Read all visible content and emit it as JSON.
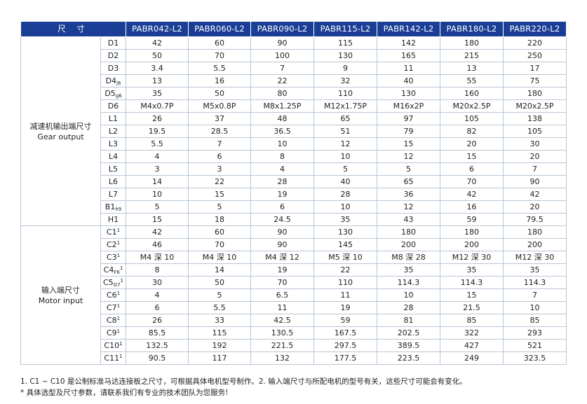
{
  "header": {
    "size_label": "尺 寸",
    "models": [
      "PABR042-L2",
      "PABR060-L2",
      "PABR090-L2",
      "PABR115-L2",
      "PABR142-L2",
      "PABR180-L2",
      "PABR220-L2"
    ]
  },
  "groups": [
    {
      "name_cn": "减速机输出端尺寸",
      "name_en": "Gear output",
      "rows": [
        {
          "code": "D1",
          "sub": "",
          "sup": "",
          "values": [
            "42",
            "60",
            "90",
            "115",
            "142",
            "180",
            "220"
          ]
        },
        {
          "code": "D2",
          "sub": "",
          "sup": "",
          "values": [
            "50",
            "70",
            "100",
            "130",
            "165",
            "215",
            "250"
          ]
        },
        {
          "code": "D3",
          "sub": "",
          "sup": "",
          "values": [
            "3.4",
            "5.5",
            "7",
            "9",
            "11",
            "13",
            "17"
          ]
        },
        {
          "code": "D4",
          "sub": "j6",
          "sup": "",
          "values": [
            "13",
            "16",
            "22",
            "32",
            "40",
            "55",
            "75"
          ]
        },
        {
          "code": "D5",
          "sub": "g6",
          "sup": "",
          "values": [
            "35",
            "50",
            "80",
            "110",
            "130",
            "160",
            "180"
          ]
        },
        {
          "code": "D6",
          "sub": "",
          "sup": "",
          "values": [
            "M4x0.7P",
            "M5x0.8P",
            "M8x1.25P",
            "M12x1.75P",
            "M16x2P",
            "M20x2.5P",
            "M20x2.5P"
          ]
        },
        {
          "code": "L1",
          "sub": "",
          "sup": "",
          "values": [
            "26",
            "37",
            "48",
            "65",
            "97",
            "105",
            "138"
          ]
        },
        {
          "code": "L2",
          "sub": "",
          "sup": "",
          "values": [
            "19.5",
            "28.5",
            "36.5",
            "51",
            "79",
            "82",
            "105"
          ]
        },
        {
          "code": "L3",
          "sub": "",
          "sup": "",
          "values": [
            "5.5",
            "7",
            "10",
            "12",
            "15",
            "20",
            "30"
          ]
        },
        {
          "code": "L4",
          "sub": "",
          "sup": "",
          "values": [
            "4",
            "6",
            "8",
            "10",
            "12",
            "15",
            "20"
          ]
        },
        {
          "code": "L5",
          "sub": "",
          "sup": "",
          "values": [
            "3",
            "3",
            "4",
            "5",
            "5",
            "6",
            "7"
          ]
        },
        {
          "code": "L6",
          "sub": "",
          "sup": "",
          "values": [
            "14",
            "22",
            "28",
            "40",
            "65",
            "70",
            "90"
          ]
        },
        {
          "code": "L7",
          "sub": "",
          "sup": "",
          "values": [
            "10",
            "15",
            "19",
            "28",
            "36",
            "42",
            "42"
          ]
        },
        {
          "code": "B1",
          "sub": "h9",
          "sup": "",
          "values": [
            "5",
            "5",
            "6",
            "10",
            "12",
            "16",
            "20"
          ]
        },
        {
          "code": "H1",
          "sub": "",
          "sup": "",
          "values": [
            "15",
            "18",
            "24.5",
            "35",
            "43",
            "59",
            "79.5"
          ]
        }
      ]
    },
    {
      "name_cn": "输入端尺寸",
      "name_en": "Motor input",
      "rows": [
        {
          "code": "C1",
          "sub": "",
          "sup": "1",
          "values": [
            "42",
            "60",
            "90",
            "130",
            "180",
            "180",
            "180"
          ]
        },
        {
          "code": "C2",
          "sub": "",
          "sup": "1",
          "values": [
            "46",
            "70",
            "90",
            "145",
            "200",
            "200",
            "200"
          ]
        },
        {
          "code": "C3",
          "sub": "",
          "sup": "1",
          "values": [
            "M4 深 10",
            "M4 深 10",
            "M4 深 12",
            "M5 深 10",
            "M8 深 28",
            "M12 深 30",
            "M12 深 30"
          ]
        },
        {
          "code": "C4",
          "sub": "F6",
          "sup": "1",
          "values": [
            "8",
            "14",
            "19",
            "22",
            "35",
            "35",
            "35"
          ]
        },
        {
          "code": "C5",
          "sub": "G7",
          "sup": "1",
          "values": [
            "30",
            "50",
            "70",
            "110",
            "114.3",
            "114.3",
            "114.3"
          ]
        },
        {
          "code": "C6",
          "sub": "",
          "sup": "1",
          "values": [
            "4",
            "5",
            "6.5",
            "11",
            "10",
            "15",
            "7"
          ]
        },
        {
          "code": "C7",
          "sub": "",
          "sup": "1",
          "values": [
            "6",
            "5.5",
            "11",
            "19",
            "28",
            "21.5",
            "10"
          ]
        },
        {
          "code": "C8",
          "sub": "",
          "sup": "1",
          "values": [
            "26",
            "33",
            "42.5",
            "59",
            "81",
            "85",
            "85"
          ]
        },
        {
          "code": "C9",
          "sub": "",
          "sup": "1",
          "values": [
            "85.5",
            "115",
            "130.5",
            "167.5",
            "202.5",
            "322",
            "293"
          ]
        },
        {
          "code": "C10",
          "sub": "",
          "sup": "1",
          "values": [
            "132.5",
            "192",
            "221.5",
            "297.5",
            "389.5",
            "427",
            "521"
          ]
        },
        {
          "code": "C11",
          "sub": "",
          "sup": "1",
          "values": [
            "90.5",
            "117",
            "132",
            "177.5",
            "223.5",
            "249",
            "323.5"
          ]
        }
      ]
    }
  ],
  "footnotes": {
    "line1": "1. C1 ~ C10 是公制标准马达连接板之尺寸，可根据具体电机型号制作。2. 输入端尺寸与所配电机的型号有关，这些尺寸可能会有变化。",
    "line2": "* 具体选型及尺寸参数，请联系我们有专业的技术团队为您服务!"
  },
  "colors": {
    "header_bg": "#1a3e96",
    "grid_line": "#b9c6d6"
  }
}
